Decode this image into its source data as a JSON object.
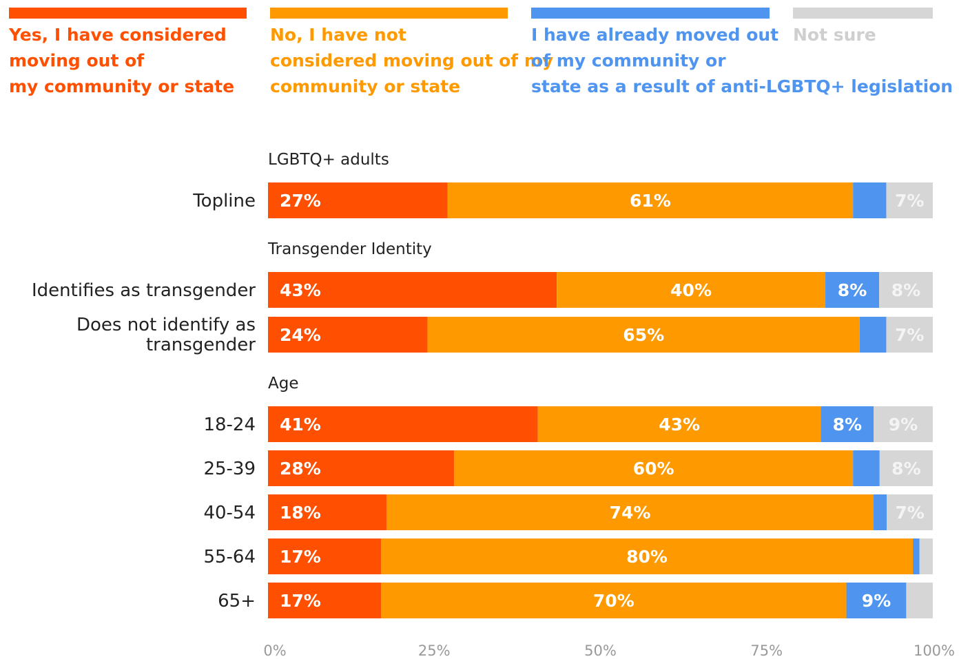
{
  "chart_data": {
    "type": "bar",
    "orientation": "horizontal",
    "stacked": true,
    "grid": false,
    "legend_position": "top",
    "series": [
      {
        "name": "Yes, I have considered moving out of my community or state",
        "color": "#fe5000"
      },
      {
        "name": "No, I have not considered moving out of my community or state",
        "color": "#fe9a00"
      },
      {
        "name": "I have already moved out of my community or state as a result of anti-LGBTQ+ legislation",
        "color": "#4f95f0"
      },
      {
        "name": "Not sure",
        "color": "#d6d6d6"
      }
    ],
    "groups": [
      {
        "title": "LGBTQ+ adults",
        "rows": [
          {
            "label": "Topline",
            "values": [
              27,
              61,
              5,
              7
            ],
            "labels": [
              "27%",
              "61%",
              "",
              "7%"
            ]
          }
        ]
      },
      {
        "title": "Transgender Identity",
        "rows": [
          {
            "label": "Identifies as transgender",
            "values": [
              43,
              40,
              8,
              8
            ],
            "labels": [
              "43%",
              "40%",
              "8%",
              "8%"
            ]
          },
          {
            "label": "Does not identify as transgender",
            "values": [
              24,
              65,
              4,
              7
            ],
            "labels": [
              "24%",
              "65%",
              "",
              "7%"
            ]
          }
        ]
      },
      {
        "title": "Age",
        "rows": [
          {
            "label": "18-24",
            "values": [
              41,
              43,
              8,
              9
            ],
            "labels": [
              "41%",
              "43%",
              "8%",
              "9%"
            ]
          },
          {
            "label": "25-39",
            "values": [
              28,
              60,
              4,
              8
            ],
            "labels": [
              "28%",
              "60%",
              "",
              "8%"
            ]
          },
          {
            "label": "40-54",
            "values": [
              18,
              74,
              2,
              7
            ],
            "labels": [
              "18%",
              "74%",
              "",
              "7%"
            ]
          },
          {
            "label": "55-64",
            "values": [
              17,
              80,
              1,
              2
            ],
            "labels": [
              "17%",
              "80%",
              "",
              ""
            ]
          },
          {
            "label": "65+",
            "values": [
              17,
              70,
              9,
              4
            ],
            "labels": [
              "17%",
              "70%",
              "9%",
              ""
            ]
          }
        ]
      }
    ],
    "x_ticks": [
      "0%",
      "25%",
      "50%",
      "75%",
      "100%"
    ],
    "xlim": [
      0,
      100
    ]
  }
}
